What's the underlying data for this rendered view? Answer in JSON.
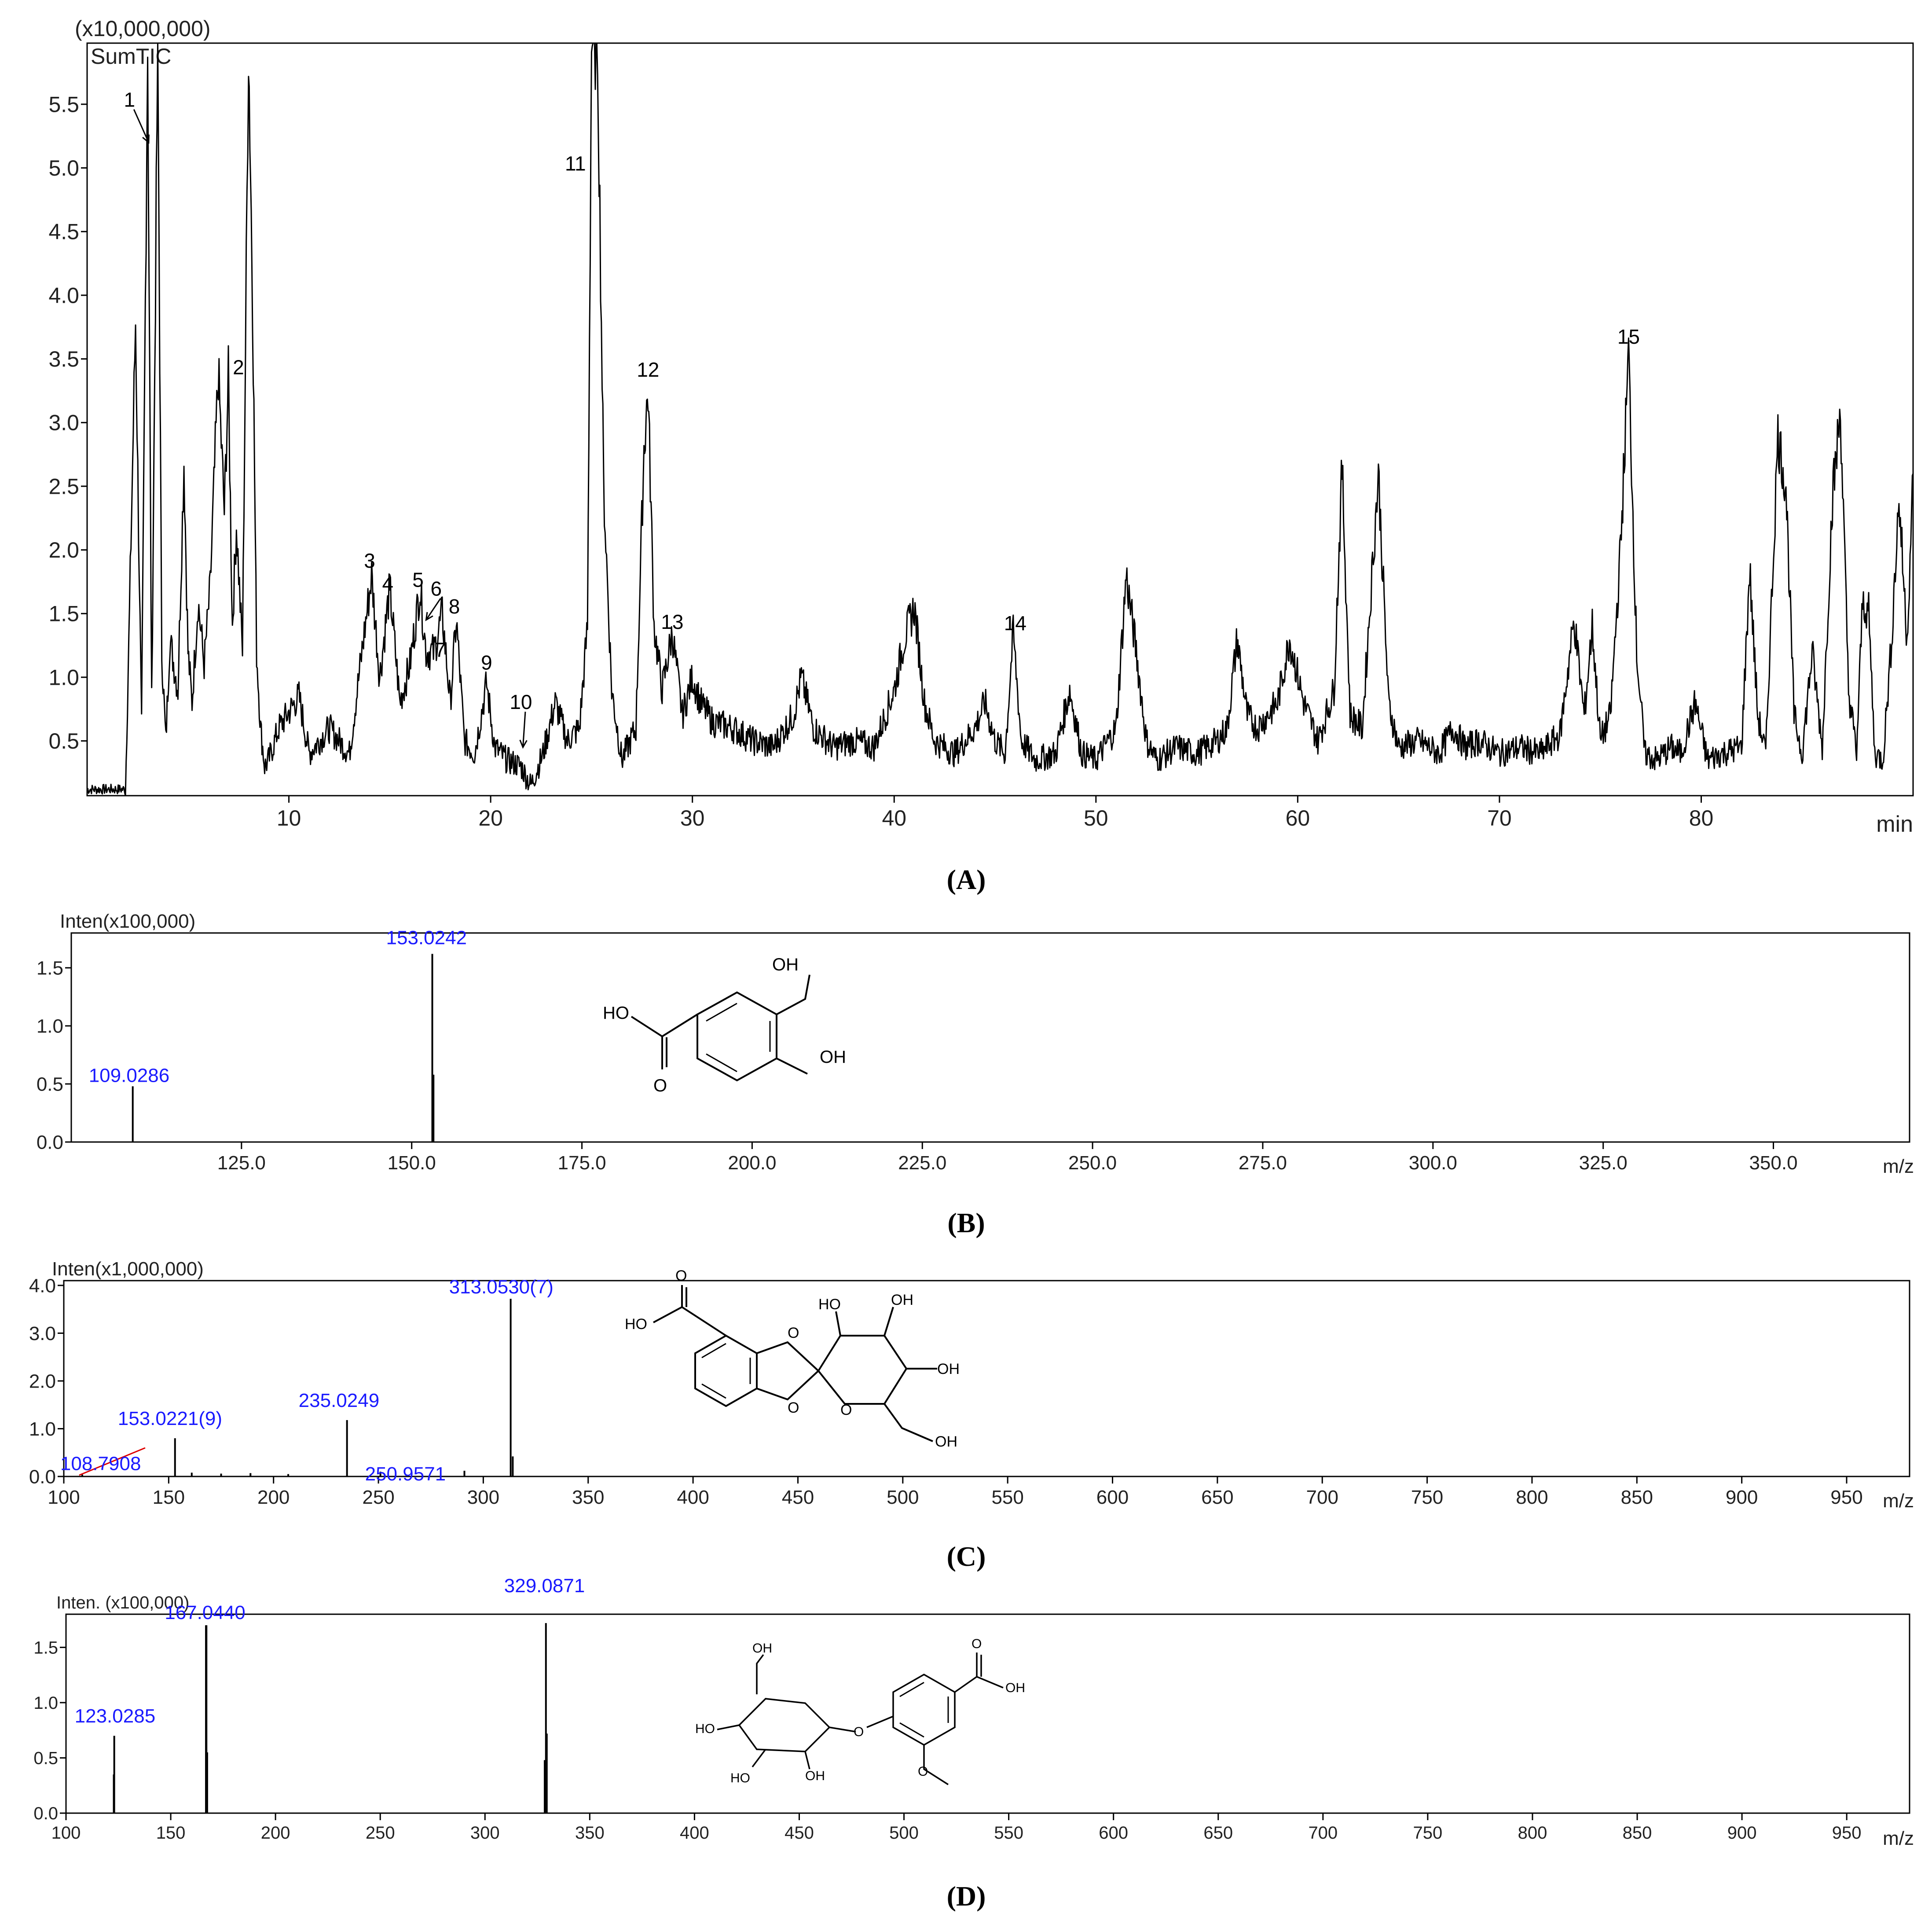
{
  "panels": [
    {
      "letter": "A",
      "caption": "(A)"
    },
    {
      "letter": "B",
      "caption": "(B)"
    },
    {
      "letter": "C",
      "caption": "(C)"
    },
    {
      "letter": "D",
      "caption": "(D)"
    }
  ],
  "chart_data": [
    {
      "panel": "A",
      "type": "line",
      "title": "SumTIC",
      "multiplier_label": "(x10,000,000)",
      "xlabel": "min",
      "ylabel": "",
      "xlim": [
        0,
        90.5
      ],
      "ylim": [
        0.07,
        5.98
      ],
      "xticks": [
        "10",
        "20",
        "30",
        "40",
        "50",
        "60",
        "70",
        "80"
      ],
      "xtick_values": [
        10,
        20,
        30,
        40,
        50,
        60,
        70,
        80
      ],
      "yticks": [
        "0.5",
        "1.0",
        "1.5",
        "2.0",
        "2.5",
        "3.0",
        "3.5",
        "4.0",
        "4.5",
        "5.0",
        "5.5"
      ],
      "ytick_values": [
        0.5,
        1.0,
        1.5,
        2.0,
        2.5,
        3.0,
        3.5,
        4.0,
        4.5,
        5.0,
        5.5
      ],
      "baseline": 0.5,
      "x": [
        0,
        1.9,
        2.1,
        2.4,
        2.7,
        3.0,
        3.2,
        3.5,
        3.7,
        3.9,
        4.1,
        4.5,
        4.8,
        5.0,
        5.2,
        5.5,
        5.8,
        6.1,
        6.5,
        6.8,
        7.0,
        7.2,
        7.4,
        7.7,
        8.0,
        8.2,
        8.4,
        8.6,
        8.8,
        9.0,
        9.5,
        10.5,
        11.0,
        12.0,
        13.0,
        13.7,
        14.1,
        14.5,
        15.0,
        15.5,
        16.0,
        16.5,
        16.8,
        17.2,
        17.6,
        18.0,
        18.3,
        18.7,
        19.2,
        19.8,
        20.2,
        20.8,
        21.5,
        22.0,
        22.6,
        23.2,
        23.8,
        24.4,
        24.8,
        25.0,
        25.3,
        25.6,
        26.0,
        26.5,
        27.2,
        27.6,
        27.8,
        28.1,
        28.5,
        29.0,
        29.5,
        30.0,
        30.4,
        31.0,
        32.0,
        33.0,
        34.0,
        35.0,
        35.4,
        36.0,
        37.0,
        38.0,
        39.0,
        40.0,
        40.5,
        41.0,
        41.5,
        42.0,
        43.0,
        44.0,
        44.5,
        45.0,
        45.5,
        45.9,
        46.3,
        47.0,
        48.0,
        48.7,
        49.3,
        50.0,
        51.0,
        51.5,
        52.0,
        52.5,
        53.0,
        54.0,
        55.0,
        56.0,
        56.5,
        57.0,
        57.5,
        58.0,
        59.0,
        59.6,
        60.3,
        61.0,
        61.8,
        62.2,
        62.6,
        63.2,
        64.0,
        64.5,
        65.0,
        66.0,
        67.0,
        67.7,
        68.3,
        69.0,
        70.0,
        71.0,
        72.0,
        73.0,
        73.7,
        74.2,
        74.6,
        75.0,
        75.5,
        76.0,
        76.4,
        76.8,
        77.2,
        77.8,
        78.5,
        79.0,
        79.7,
        80.3,
        81.0,
        82.0,
        82.4,
        82.8,
        83.2,
        83.8,
        84.2,
        84.6,
        85.0,
        85.5,
        86.0,
        86.5,
        86.9,
        87.3,
        87.7,
        88.0,
        88.3,
        88.6,
        89.0,
        89.4,
        89.8,
        90.2,
        90.5
      ],
      "y": [
        0.12,
        0.12,
        1.5,
        3.8,
        0.6,
        5.98,
        0.8,
        5.98,
        1.2,
        0.5,
        1.3,
        0.9,
        2.7,
        1.2,
        0.8,
        1.6,
        1.1,
        1.7,
        3.4,
        2.3,
        3.35,
        1.4,
        2.2,
        1.2,
        5.98,
        4.0,
        1.2,
        0.6,
        0.3,
        0.35,
        0.6,
        0.85,
        0.4,
        0.6,
        0.4,
        1.3,
        1.8,
        1.0,
        1.7,
        0.8,
        1.1,
        1.7,
        1.2,
        1.2,
        1.5,
        0.8,
        1.45,
        0.5,
        0.4,
        0.95,
        0.45,
        0.35,
        0.3,
        0.15,
        0.4,
        0.8,
        0.5,
        0.6,
        1.4,
        5.98,
        5.98,
        2.5,
        0.9,
        0.35,
        0.6,
        2.8,
        3.25,
        1.4,
        0.9,
        1.35,
        0.7,
        1.0,
        0.8,
        0.65,
        0.6,
        0.5,
        0.45,
        0.7,
        1.0,
        0.6,
        0.45,
        0.5,
        0.45,
        0.9,
        1.3,
        1.55,
        0.8,
        0.5,
        0.4,
        0.6,
        0.8,
        0.5,
        0.4,
        1.35,
        0.5,
        0.35,
        0.4,
        0.9,
        0.4,
        0.35,
        0.6,
        1.8,
        1.2,
        0.5,
        0.35,
        0.45,
        0.4,
        0.5,
        0.6,
        1.3,
        0.7,
        0.6,
        0.8,
        1.3,
        0.8,
        0.5,
        0.9,
        2.65,
        0.7,
        0.6,
        2.6,
        0.8,
        0.45,
        0.5,
        0.4,
        0.6,
        0.45,
        0.5,
        0.4,
        0.45,
        0.4,
        0.55,
        1.45,
        0.7,
        1.4,
        0.5,
        0.7,
        2.0,
        3.55,
        1.2,
        0.4,
        0.35,
        0.45,
        0.4,
        0.8,
        0.35,
        0.4,
        0.45,
        1.85,
        0.7,
        0.4,
        2.9,
        2.5,
        0.7,
        0.4,
        1.2,
        0.45,
        2.4,
        3.1,
        0.9,
        0.4,
        1.6,
        1.5,
        0.4,
        0.35,
        1.2,
        2.4,
        1.3,
        2.6
      ],
      "peak_labels": [
        {
          "label": "1",
          "x": 2.1,
          "y": 5.48,
          "arrow_to": [
            3.05,
            5.2
          ]
        },
        {
          "label": "2",
          "x": 7.5,
          "y": 3.38
        },
        {
          "label": "3",
          "x": 14.0,
          "y": 1.86
        },
        {
          "label": "4",
          "x": 14.9,
          "y": 1.68
        },
        {
          "label": "5",
          "x": 16.4,
          "y": 1.71
        },
        {
          "label": "6",
          "x": 17.3,
          "y": 1.64,
          "arrow_to": [
            16.8,
            1.45
          ]
        },
        {
          "label": "7",
          "x": 17.5,
          "y": 1.16
        },
        {
          "label": "8",
          "x": 18.2,
          "y": 1.5
        },
        {
          "label": "9",
          "x": 19.8,
          "y": 1.06
        },
        {
          "label": "10",
          "x": 21.5,
          "y": 0.75,
          "arrow_to": [
            21.6,
            0.45
          ]
        },
        {
          "label": "11",
          "x": 24.2,
          "y": 4.98
        },
        {
          "label": "12",
          "x": 27.8,
          "y": 3.36
        },
        {
          "label": "13",
          "x": 29.0,
          "y": 1.38
        },
        {
          "label": "14",
          "x": 46.0,
          "y": 1.37
        },
        {
          "label": "15",
          "x": 76.4,
          "y": 3.62
        }
      ]
    },
    {
      "panel": "B",
      "type": "bar",
      "multiplier_label": "Inten(x100,000)",
      "xlabel": "m/z",
      "ylabel": "",
      "xlim": [
        100.0,
        370.0
      ],
      "ylim": [
        0.0,
        1.8
      ],
      "xticks": [
        "125.0",
        "150.0",
        "175.0",
        "200.0",
        "225.0",
        "250.0",
        "275.0",
        "300.0",
        "325.0",
        "350.0"
      ],
      "xtick_values": [
        125.0,
        150.0,
        175.0,
        200.0,
        225.0,
        250.0,
        275.0,
        300.0,
        325.0,
        350.0
      ],
      "yticks": [
        "0.0",
        "0.5",
        "1.0",
        "1.5"
      ],
      "ytick_values": [
        0.0,
        0.5,
        1.0,
        1.5
      ],
      "x": [
        109.0286,
        153.0242,
        153.2
      ],
      "values": [
        0.48,
        1.62,
        0.58
      ],
      "peak_labels": [
        {
          "label": "109.0286",
          "x": 109.0286,
          "y": 0.48
        },
        {
          "label": "153.0242",
          "x": 153.0242,
          "y": 1.62
        }
      ],
      "structure_labels": [
        "HO",
        "OH",
        "OH",
        "O"
      ]
    },
    {
      "panel": "C",
      "type": "bar",
      "multiplier_label": "Inten(x1,000,000)",
      "xlabel": "m/z",
      "ylabel": "",
      "xlim": [
        100,
        980
      ],
      "ylim": [
        0.0,
        4.1
      ],
      "xticks": [
        "100",
        "150",
        "200",
        "250",
        "300",
        "350",
        "400",
        "450",
        "500",
        "550",
        "600",
        "650",
        "700",
        "750",
        "800",
        "850",
        "900",
        "950"
      ],
      "xtick_values": [
        100,
        150,
        200,
        250,
        300,
        350,
        400,
        450,
        500,
        550,
        600,
        650,
        700,
        750,
        800,
        850,
        900,
        950
      ],
      "yticks": [
        "0.0",
        "1.0",
        "2.0",
        "3.0",
        "4.0"
      ],
      "ytick_values": [
        0.0,
        1.0,
        2.0,
        3.0,
        4.0
      ],
      "x": [
        108.7908,
        153.0221,
        161.0,
        175.0,
        189.0,
        207.0,
        235.0249,
        250.9571,
        291.0,
        313.053,
        314.05
      ],
      "values": [
        0.04,
        0.8,
        0.08,
        0.06,
        0.07,
        0.05,
        1.18,
        0.1,
        0.12,
        3.72,
        0.42
      ],
      "peak_labels": [
        {
          "label": "108.7908",
          "x": 108.7908,
          "y": 0.04
        },
        {
          "label": "153.0221(9)",
          "x": 153.0221,
          "y": 0.8
        },
        {
          "label": "235.0249",
          "x": 235.0249,
          "y": 1.18
        },
        {
          "label": "250.9571",
          "x": 250.9571,
          "y": 0.1
        },
        {
          "label": "313.0530(7)",
          "x": 313.053,
          "y": 3.72
        }
      ],
      "structure_labels": [
        "O",
        "HO",
        "O",
        "O",
        "HO",
        "OH",
        "OH",
        "O",
        "OH"
      ]
    },
    {
      "panel": "D",
      "type": "bar",
      "multiplier_label": "Inten. (x100,000)",
      "xlabel": "m/z",
      "ylabel": "",
      "xlim": [
        100,
        980
      ],
      "ylim": [
        0.0,
        1.8
      ],
      "xticks": [
        "100",
        "150",
        "200",
        "250",
        "300",
        "350",
        "400",
        "450",
        "500",
        "550",
        "600",
        "650",
        "700",
        "750",
        "800",
        "850",
        "900",
        "950"
      ],
      "xtick_values": [
        100,
        150,
        200,
        250,
        300,
        350,
        400,
        450,
        500,
        550,
        600,
        650,
        700,
        750,
        800,
        850,
        900,
        950
      ],
      "yticks": [
        "0.0",
        "0.5",
        "1.0",
        "1.5"
      ],
      "ytick_values": [
        0.0,
        0.5,
        1.0,
        1.5
      ],
      "x": [
        122.8,
        123.0285,
        166.8,
        167.044,
        167.4,
        328.5,
        329.0871,
        329.5
      ],
      "values": [
        0.35,
        0.7,
        1.7,
        1.7,
        0.55,
        0.48,
        1.72,
        0.72
      ],
      "peak_labels": [
        {
          "label": "123.0285",
          "x": 123.0285,
          "y": 0.7
        },
        {
          "label": "167.0440",
          "x": 167.044,
          "y": 1.7
        },
        {
          "label": "329.0871",
          "x": 329.0871,
          "y": 1.72
        }
      ],
      "structure_labels": [
        "OH",
        "HO",
        "HO",
        "O",
        "OH",
        "O",
        "O",
        "OH"
      ]
    }
  ],
  "colors": {
    "trace": "#000000",
    "peak_label": "#1a1aff",
    "guide_line": "#dd0000",
    "axis": "#000000"
  }
}
